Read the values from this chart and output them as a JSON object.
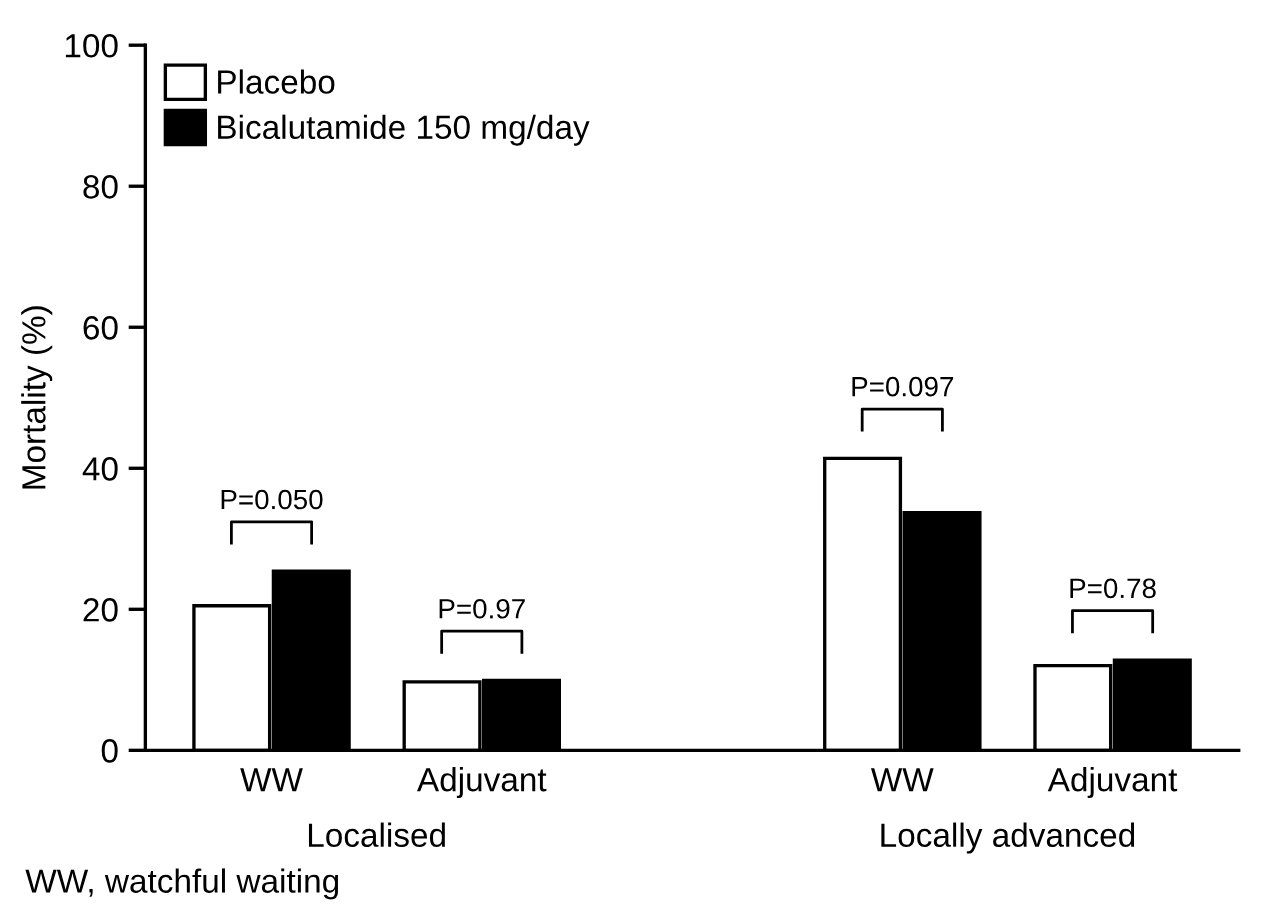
{
  "chart_data": {
    "type": "bar",
    "ylabel": "Mortality (%)",
    "categories": [
      "WW",
      "Adjuvant",
      null,
      "WW",
      "Adjuvant"
    ],
    "series": [
      {
        "name": "Placebo",
        "color": "#ffffff",
        "values": [
          20.5,
          9.7,
          null,
          41.4,
          12.0
        ]
      },
      {
        "name": "Bicalutamide 150 mg/day",
        "color": "#000000",
        "values": [
          25.4,
          9.9,
          null,
          33.7,
          12.8
        ]
      }
    ],
    "ylim": [
      0,
      100
    ],
    "yticks": [
      0,
      20,
      40,
      60,
      80,
      100
    ],
    "grid": false,
    "legend": "top left",
    "annotations": [
      "P=0.050",
      "P=0.97",
      "P=0.097",
      "P=0.78",
      "Localised",
      "Locally advanced",
      "WW, watchful waiting"
    ]
  }
}
